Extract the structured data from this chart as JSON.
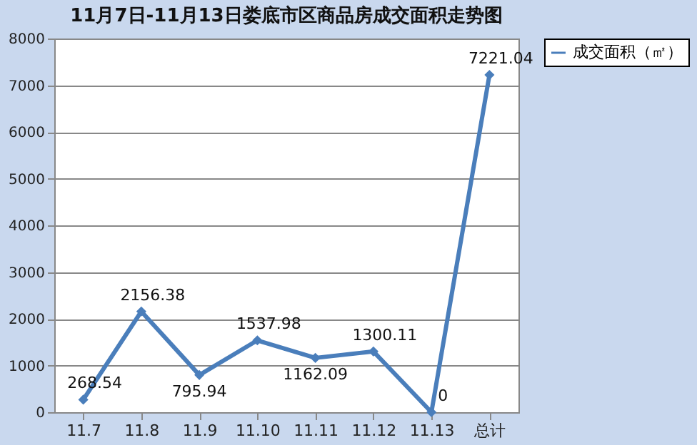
{
  "chart_data": {
    "type": "line",
    "title": "11月7日-11月13日娄底市区商品房成交面积走势图",
    "categories": [
      "11.7",
      "11.8",
      "11.9",
      "11.10",
      "11.11",
      "11.12",
      "11.13",
      "总计"
    ],
    "series": [
      {
        "name": "成交面积（㎡）",
        "color": "#4a7ebb",
        "values": [
          268.54,
          2156.38,
          795.94,
          1537.98,
          1162.09,
          1300.11,
          0,
          7221.04
        ]
      }
    ],
    "ylim": [
      0,
      8000
    ],
    "yticks": [
      0,
      1000,
      2000,
      3000,
      4000,
      5000,
      6000,
      7000,
      8000
    ],
    "grid": "y",
    "legend": "right",
    "marker": "diamond",
    "data_labels": true
  }
}
